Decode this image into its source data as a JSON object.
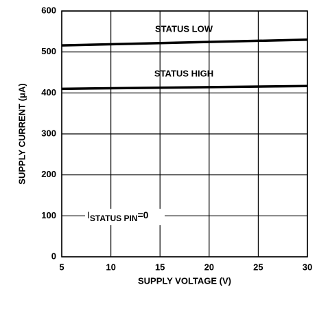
{
  "chart_data": {
    "type": "line",
    "x_label": "SUPPLY VOLTAGE (V)",
    "y_label": "SUPPLY CURRENT (μA)",
    "annotations": [
      "STATUS LOW",
      "STATUS HIGH",
      {
        "symbol": "I",
        "subscript": "STATUS PIN",
        "text": "=0"
      }
    ],
    "series": [
      {
        "name": "STATUS LOW",
        "color": "#000000",
        "x": [
          5,
          30
        ],
        "values": [
          516,
          530
        ]
      },
      {
        "name": "STATUS HIGH",
        "color": "#000000",
        "x": [
          5,
          30
        ],
        "values": [
          410,
          417
        ]
      }
    ],
    "xlim": [
      5,
      30
    ],
    "xticks": [
      5,
      10,
      15,
      20,
      25,
      30
    ],
    "ylim": [
      0,
      600
    ],
    "yticks": [
      0,
      100,
      200,
      300,
      400,
      500,
      600
    ],
    "grid": true
  }
}
